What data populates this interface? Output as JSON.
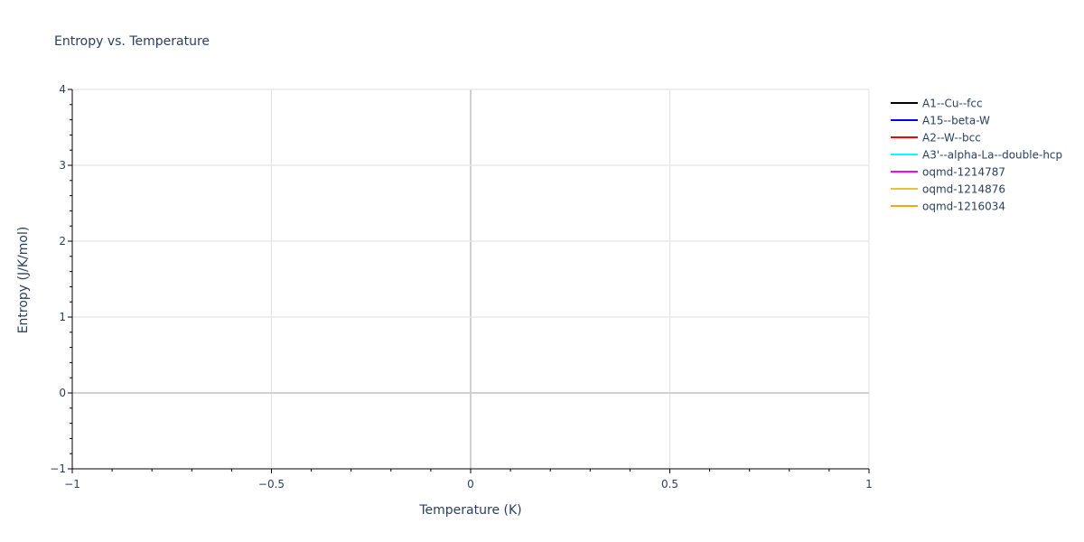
{
  "chart_data": {
    "type": "line",
    "title": "Entropy vs. Temperature",
    "xlabel": "Temperature (K)",
    "ylabel": "Entropy (J/K/mol)",
    "xlim": [
      -1,
      1
    ],
    "ylim": [
      -1,
      4
    ],
    "xticks": [
      -1,
      -0.5,
      0,
      0.5,
      1
    ],
    "xtick_labels": [
      "−1",
      "−0.5",
      "0",
      "0.5",
      "1"
    ],
    "yticks": [
      -1,
      0,
      1,
      2,
      3,
      4
    ],
    "ytick_labels": [
      "−1",
      "0",
      "1",
      "2",
      "3",
      "4"
    ],
    "grid": true,
    "legend_position": "right",
    "series": [
      {
        "name": "A1--Cu--fcc",
        "color": "#000000",
        "x": [],
        "y": []
      },
      {
        "name": "A15--beta-W",
        "color": "#0000ff",
        "x": [],
        "y": []
      },
      {
        "name": "A2--W--bcc",
        "color": "#ff0000",
        "x": [],
        "y": []
      },
      {
        "name": "A3'--alpha-La--double-hcp",
        "color": "#00ffff",
        "x": [],
        "y": []
      },
      {
        "name": "oqmd-1214787",
        "color": "#ff00ff",
        "x": [],
        "y": []
      },
      {
        "name": "oqmd-1214876",
        "color": "#f0c030",
        "x": [],
        "y": []
      },
      {
        "name": "oqmd-1216034",
        "color": "#ffa500",
        "x": [],
        "y": []
      }
    ]
  }
}
